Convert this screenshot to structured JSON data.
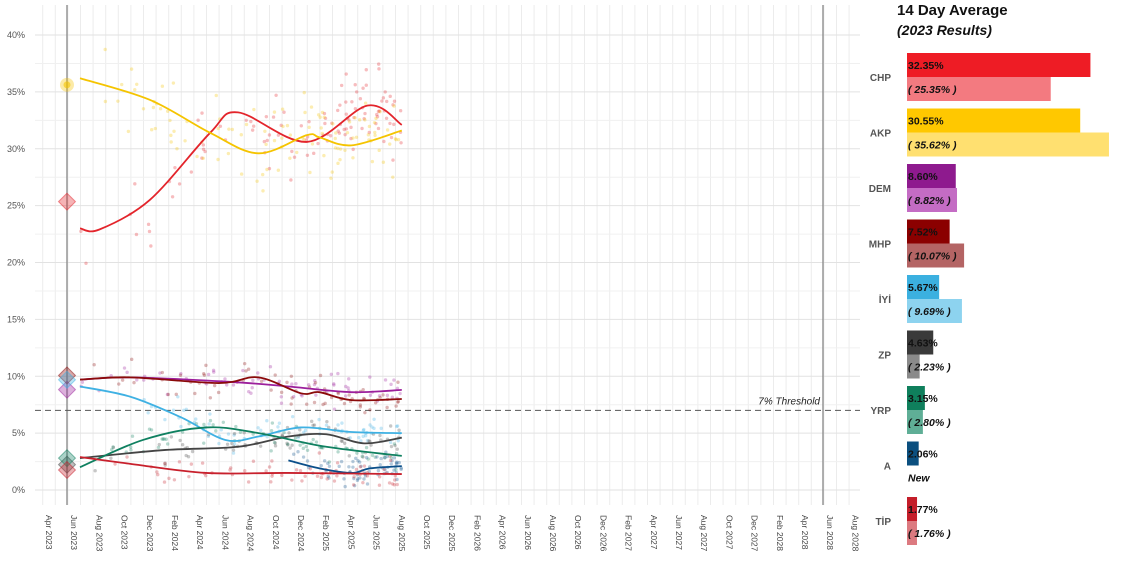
{
  "chart_data": [
    {
      "type": "line+scatter",
      "xlabel": "",
      "ylabel": "",
      "x_range": [
        "2023-03-20",
        "2028-08-15"
      ],
      "ylim": [
        0,
        41
      ],
      "y_ticks": [
        0,
        5,
        10,
        15,
        20,
        25,
        30,
        35,
        40
      ],
      "y_tick_format": "{v}%",
      "x_ticks": [
        "Apr 2023",
        "Jun 2023",
        "Aug 2023",
        "Oct 2023",
        "Dec 2023",
        "Feb 2024",
        "Apr 2024",
        "Jun 2024",
        "Aug 2024",
        "Oct 2024",
        "Dec 2024",
        "Feb 2025",
        "Apr 2025",
        "Jun 2025",
        "Aug 2025",
        "Oct 2025",
        "Dec 2025",
        "Feb 2026",
        "Apr 2026",
        "Jun 2026",
        "Aug 2026",
        "Oct 2026",
        "Dec 2026",
        "Feb 2027",
        "Apr 2027",
        "Jun 2027",
        "Aug 2027",
        "Oct 2027",
        "Dec 2027",
        "Feb 2028",
        "Apr 2028",
        "Jun 2028",
        "Aug 2028"
      ],
      "grid": true,
      "vertical_markers": [
        "2023-05-14",
        "2028-05-14"
      ],
      "threshold": {
        "value": 7,
        "label": "7% Threshold"
      },
      "series": [
        {
          "name": "CHP",
          "color": "#e3242b",
          "result_2023": 25.35,
          "trend": [
            [
              "2023-06-15",
              23.0
            ],
            [
              "2023-08-01",
              22.9
            ],
            [
              "2023-12-01",
              25.5
            ],
            [
              "2024-04-25",
              31.4
            ],
            [
              "2024-07-01",
              33.2
            ],
            [
              "2024-12-15",
              30.6
            ],
            [
              "2025-05-10",
              33.8
            ],
            [
              "2025-08-01",
              32.1
            ]
          ]
        },
        {
          "name": "AKP",
          "color": "#f5c400",
          "result_2023": 35.62,
          "trend": [
            [
              "2023-06-15",
              36.2
            ],
            [
              "2023-12-01",
              34.3
            ],
            [
              "2024-04-25",
              31.4
            ],
            [
              "2024-08-20",
              29.6
            ],
            [
              "2024-12-15",
              31.2
            ],
            [
              "2025-01-15",
              31.0
            ],
            [
              "2025-04-01",
              30.3
            ],
            [
              "2025-08-01",
              31.6
            ]
          ]
        },
        {
          "name": "DEM",
          "color": "#9c1f9c",
          "result_2023": 8.82,
          "trend": [
            [
              "2023-06-15",
              9.7
            ],
            [
              "2023-10-15",
              9.9
            ],
            [
              "2024-06-15",
              9.5
            ],
            [
              "2024-11-01",
              9.1
            ],
            [
              "2025-04-01",
              8.6
            ],
            [
              "2025-08-01",
              8.8
            ]
          ]
        },
        {
          "name": "MHP",
          "color": "#8b0a0a",
          "result_2023": 10.07,
          "trend": [
            [
              "2023-06-15",
              9.7
            ],
            [
              "2023-10-15",
              9.9
            ],
            [
              "2024-05-15",
              9.4
            ],
            [
              "2024-08-20",
              9.9
            ],
            [
              "2024-12-01",
              8.5
            ],
            [
              "2025-01-15",
              8.6
            ],
            [
              "2025-04-01",
              7.9
            ],
            [
              "2025-08-01",
              8.0
            ]
          ]
        },
        {
          "name": "İYİ",
          "color": "#3fb1e3",
          "result_2023": 9.69,
          "trend": [
            [
              "2023-06-15",
              9.1
            ],
            [
              "2023-10-15",
              8.2
            ],
            [
              "2024-02-15",
              6.4
            ],
            [
              "2024-06-01",
              4.4
            ],
            [
              "2024-08-20",
              4.7
            ],
            [
              "2024-12-01",
              5.5
            ],
            [
              "2025-04-01",
              5.1
            ],
            [
              "2025-08-01",
              5.0
            ]
          ]
        },
        {
          "name": "ZP",
          "color": "#444444",
          "result_2023": 2.23,
          "trend": [
            [
              "2023-06-15",
              2.8
            ],
            [
              "2024-01-01",
              3.5
            ],
            [
              "2024-07-01",
              3.8
            ],
            [
              "2024-11-01",
              4.7
            ],
            [
              "2025-02-01",
              4.9
            ],
            [
              "2025-05-01",
              4.1
            ],
            [
              "2025-08-01",
              4.6
            ]
          ]
        },
        {
          "name": "YRP",
          "color": "#0f8060",
          "result_2023": 2.8,
          "trend": [
            [
              "2023-06-15",
              2.0
            ],
            [
              "2023-11-15",
              4.4
            ],
            [
              "2024-04-15",
              5.5
            ],
            [
              "2024-08-20",
              5.0
            ],
            [
              "2025-02-01",
              3.8
            ],
            [
              "2025-08-01",
              3.0
            ]
          ]
        },
        {
          "name": "A",
          "color": "#0b4f8a",
          "result_2023": null,
          "trend": [
            [
              "2024-11-01",
              2.6
            ],
            [
              "2025-01-15",
              1.9
            ],
            [
              "2025-04-01",
              1.5
            ],
            [
              "2025-05-15",
              1.9
            ],
            [
              "2025-08-01",
              2.1
            ]
          ]
        },
        {
          "name": "TİP",
          "color": "#c8202c",
          "result_2023": 1.76,
          "trend": [
            [
              "2023-06-15",
              2.9
            ],
            [
              "2023-10-15",
              2.3
            ],
            [
              "2024-04-15",
              1.5
            ],
            [
              "2024-11-01",
              1.5
            ],
            [
              "2025-08-01",
              1.4
            ]
          ]
        }
      ]
    },
    {
      "type": "bar",
      "title": "14 Day Average",
      "subtitle": "(2023 Results)",
      "orientation": "horizontal",
      "categories": [
        "CHP",
        "AKP",
        "DEM",
        "MHP",
        "İYİ",
        "ZP",
        "YRP",
        "A",
        "TİP"
      ],
      "series": [
        {
          "name": "14 Day Average",
          "values": [
            32.35,
            30.55,
            8.6,
            7.52,
            5.67,
            4.63,
            3.15,
            2.06,
            1.77
          ],
          "labels": [
            "32.35%",
            "30.55%",
            "8.60%",
            "7.52%",
            "5.67%",
            "4.63%",
            "3.15%",
            "2.06%",
            "1.77%"
          ],
          "colors": [
            "#ee1c25",
            "#ffc800",
            "#8e1a8e",
            "#8b0000",
            "#3bb0e0",
            "#3a3a3a",
            "#0f7f5c",
            "#0b4f7f",
            "#c41e2a"
          ]
        },
        {
          "name": "2023 Results",
          "values": [
            25.35,
            35.62,
            8.82,
            10.07,
            9.69,
            2.23,
            2.8,
            null,
            1.76
          ],
          "labels": [
            "( 25.35% )",
            "( 35.62% )",
            "( 8.82% )",
            "( 10.07% )",
            "( 9.69% )",
            "( 2.23% )",
            "( 2.80% )",
            "New",
            "( 1.76% )"
          ],
          "colors": [
            "#f37a80",
            "#ffe070",
            "#c46cc4",
            "#b46464",
            "#8dd3ef",
            "#8a8a8a",
            "#5fae96",
            null,
            "#dc7a80"
          ]
        }
      ]
    }
  ]
}
